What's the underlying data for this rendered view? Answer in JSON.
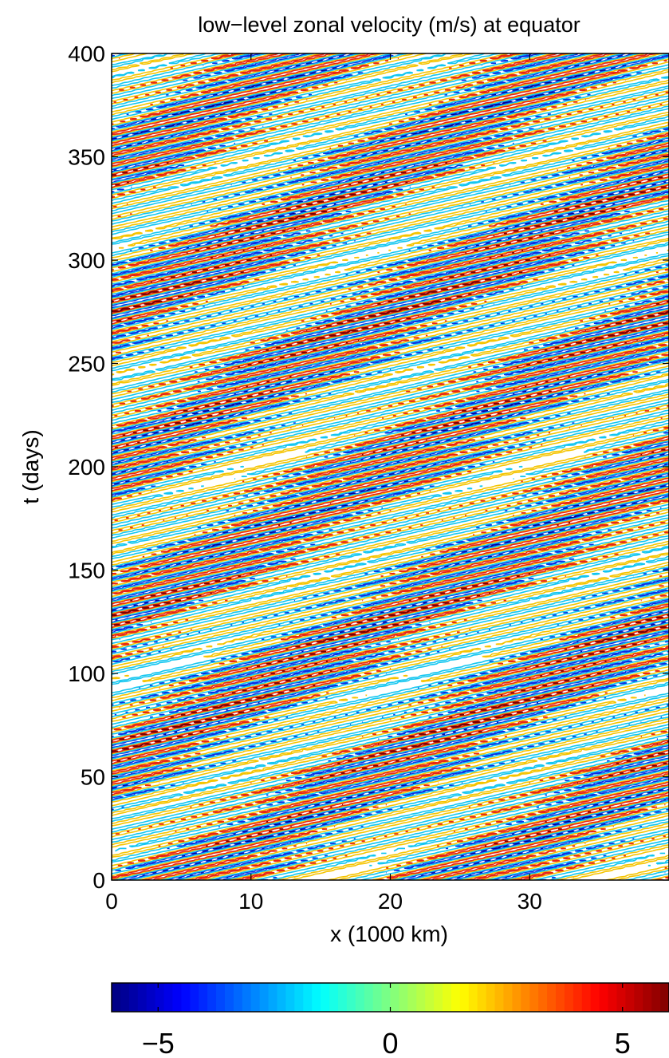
{
  "chart_data": {
    "type": "contour",
    "title": "low−level zonal velocity (m/s) at equator",
    "xlabel": "x (1000 km)",
    "ylabel": "t (days)",
    "x_ticks": [
      "0",
      "10",
      "20",
      "30"
    ],
    "y_ticks": [
      "0",
      "50",
      "100",
      "150",
      "200",
      "250",
      "300",
      "350",
      "400"
    ],
    "xlim": [
      0,
      40
    ],
    "ylim": [
      0,
      400
    ],
    "colorbar": {
      "range": [
        -6,
        6
      ],
      "ticks": [
        "−5",
        "0",
        "5"
      ],
      "tick_values": [
        -5,
        0,
        5
      ],
      "colormap": "jet"
    },
    "contour_levels": [
      -6,
      -4,
      -2,
      0,
      2,
      4,
      6
    ],
    "level_colors": {
      "-6": "#00008f",
      "-4": "#0a2ee6",
      "-2": "#12c6f0",
      "0": "#7ff080",
      "2": "#f5c400",
      "4": "#e82515",
      "6": "#7a0000"
    },
    "pattern": {
      "description_note": "",
      "period_x": 20,
      "x_shift_per_day": 0.38,
      "band_spacing_days": 12
    },
    "grid": false
  }
}
